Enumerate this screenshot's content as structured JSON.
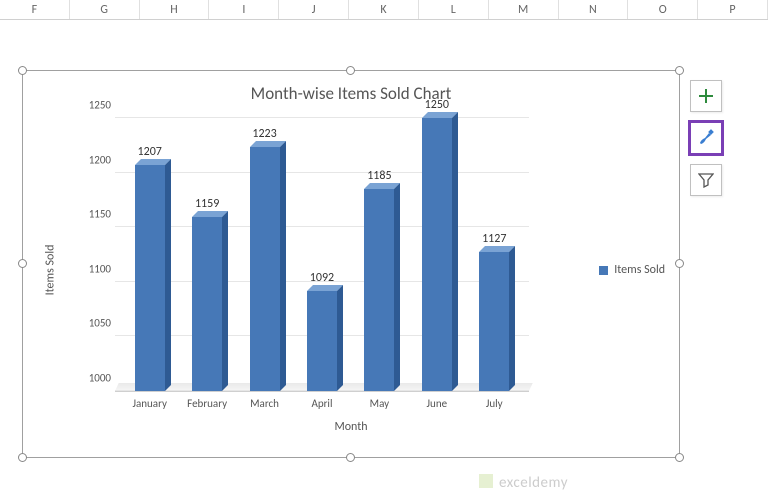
{
  "columns": [
    "F",
    "G",
    "H",
    "I",
    "J",
    "K",
    "L",
    "M",
    "N",
    "O",
    "P"
  ],
  "chart": {
    "type": "bar-3d",
    "title": "Month-wise Items Sold Chart",
    "title_fontsize": 17,
    "title_color": "#555555",
    "x_axis_title": "Month",
    "y_axis_title": "Items Sold",
    "label_fontsize": 12,
    "categories": [
      "January",
      "February",
      "March",
      "April",
      "May",
      "June",
      "July"
    ],
    "values": [
      1207,
      1159,
      1223,
      1092,
      1185,
      1250,
      1127
    ],
    "bar_color_front": "#4678b7",
    "bar_color_top": "#7aa3d4",
    "bar_color_side": "#2e5a93",
    "background_color": "#ffffff",
    "grid_color": "#e6e6e6",
    "ylim": [
      1000,
      1250
    ],
    "ytick_step": 50,
    "yticks": [
      1000,
      1050,
      1100,
      1150,
      1200,
      1250
    ],
    "legend": {
      "label": "Items Sold",
      "color": "#4678b7",
      "position": "right"
    },
    "data_label_fontsize": 12,
    "tick_fontsize": 11
  },
  "side_buttons": {
    "plus": "chart-elements-button",
    "brush": "chart-styles-button",
    "funnel": "chart-filter-button",
    "highlighted": "brush"
  },
  "watermark": "exceldemy"
}
